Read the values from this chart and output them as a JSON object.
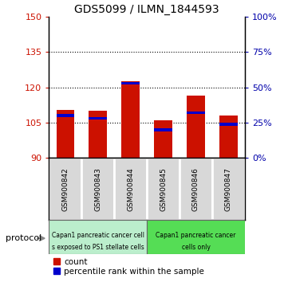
{
  "title": "GDS5099 / ILMN_1844593",
  "samples": [
    "GSM900842",
    "GSM900843",
    "GSM900844",
    "GSM900845",
    "GSM900846",
    "GSM900847"
  ],
  "counts": [
    110.5,
    110.0,
    122.5,
    106.0,
    116.5,
    108.0
  ],
  "percentiles": [
    30,
    28,
    53,
    20,
    32,
    24
  ],
  "y_min": 90,
  "y_max": 150,
  "y_ticks_left": [
    90,
    105,
    120,
    135,
    150
  ],
  "y_ticks_right": [
    0,
    25,
    50,
    75,
    100
  ],
  "bar_color": "#cc1100",
  "percentile_color": "#0000cc",
  "left_tick_color": "#cc1100",
  "right_tick_color": "#0000aa",
  "group1_label_line1": "Capan1 pancreatic cancer cell",
  "group1_label_line2": "s exposed to PS1 stellate cells",
  "group2_label_line1": "Capan1 pancreatic cancer",
  "group2_label_line2": "cells only",
  "group1_color": "#bbeecc",
  "group2_color": "#55dd55",
  "protocol_label": "protocol",
  "legend_count": "count",
  "legend_percentile": "percentile rank within the sample",
  "bg_color": "#ffffff",
  "grid_yticks": [
    105,
    120,
    135
  ]
}
